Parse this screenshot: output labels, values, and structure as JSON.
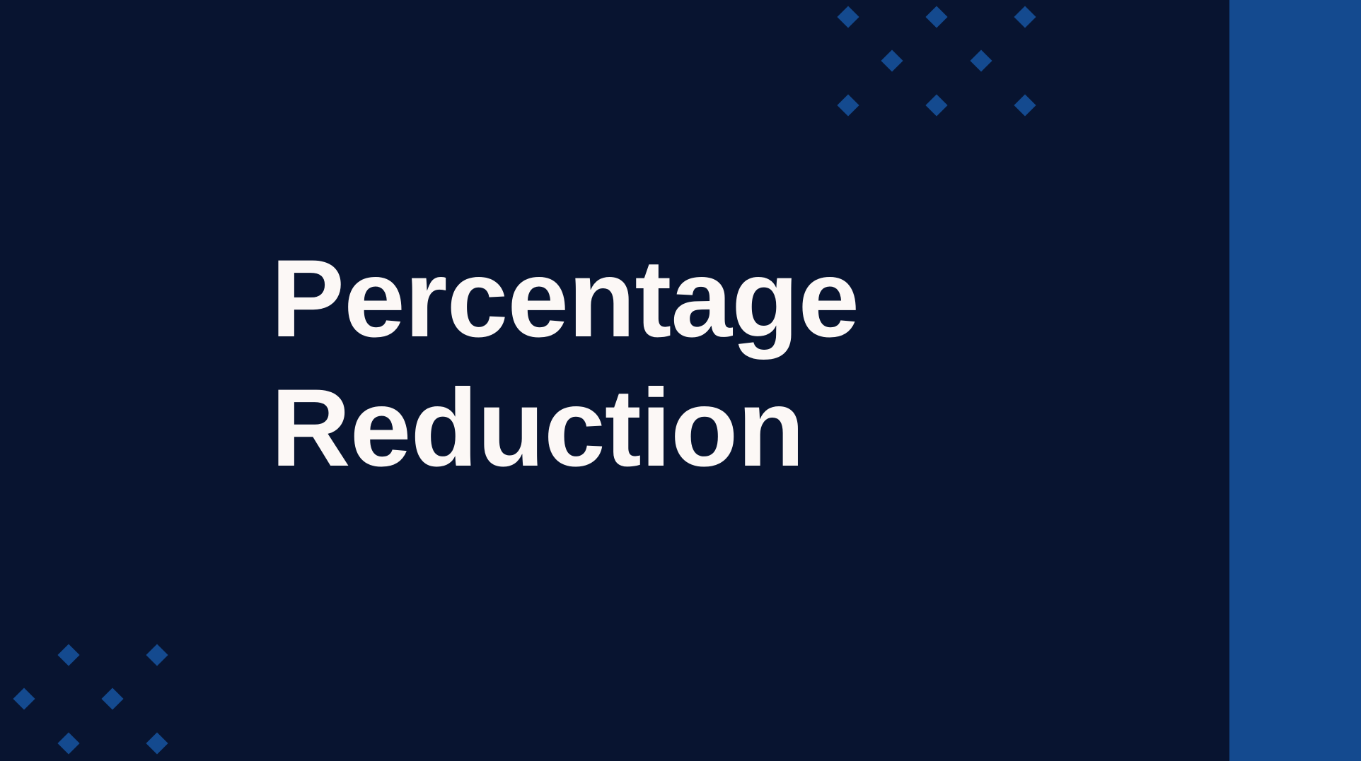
{
  "slide": {
    "title_line_1": "Percentage",
    "title_line_2": "Reduction"
  },
  "decor": {
    "icon": "diamond-pattern",
    "accent_color": "#144a8f",
    "background_color": "#081430",
    "text_color": "#fcf8f6"
  }
}
